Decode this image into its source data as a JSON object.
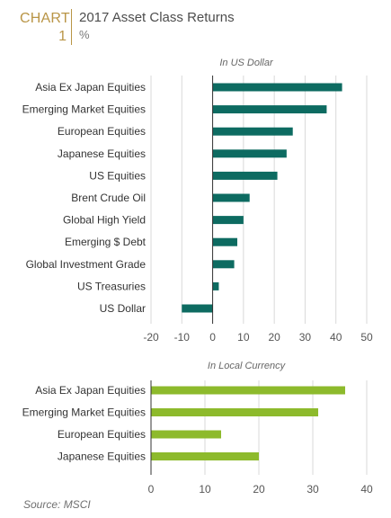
{
  "header": {
    "chart_tag": "CHART",
    "chart_number": "1",
    "title": "2017 Asset Class Returns",
    "subtitle": "%"
  },
  "source": "Source: MSCI",
  "colors": {
    "us_dollar_bar": "#0d6b61",
    "local_currency_bar": "#8dba2c",
    "gridline": "#d9d9d9",
    "zero_line": "#333333",
    "label_text": "#333333",
    "axis_text": "#555555",
    "accent": "#b99546"
  },
  "chart_data": [
    {
      "type": "bar",
      "orientation": "horizontal",
      "title": "In US Dollar",
      "categories": [
        "Asia Ex Japan Equities",
        "Emerging Market Equities",
        "European Equities",
        "Japanese Equities",
        "US Equities",
        "Brent Crude Oil",
        "Global High Yield",
        "Emerging $ Debt",
        "Global Investment Grade",
        "US Treasuries",
        "US Dollar"
      ],
      "values": [
        42,
        37,
        26,
        24,
        21,
        12,
        10,
        8,
        7,
        2,
        -10
      ],
      "xlim": [
        -20,
        50
      ],
      "xticks": [
        -20,
        -10,
        0,
        10,
        20,
        30,
        40,
        50
      ],
      "grid": true,
      "color": "#0d6b61"
    },
    {
      "type": "bar",
      "orientation": "horizontal",
      "title": "In Local Currency",
      "categories": [
        "Asia Ex Japan Equities",
        "Emerging Market Equities",
        "European Equities",
        "Japanese Equities"
      ],
      "values": [
        36,
        31,
        13,
        20
      ],
      "xlim": [
        0,
        40
      ],
      "xticks": [
        0,
        10,
        20,
        30,
        40
      ],
      "grid": true,
      "color": "#8dba2c"
    }
  ]
}
